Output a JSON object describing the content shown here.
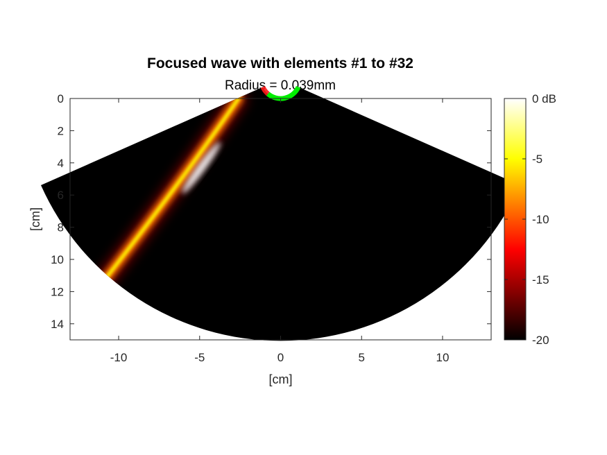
{
  "chart_data": {
    "type": "heatmap",
    "title": "Focused wave with elements #1 to #32",
    "subtitle": "Radius = 0.039mm",
    "xlabel": "[cm]",
    "ylabel": "[cm]",
    "xlim": [
      -13,
      13
    ],
    "ylim": [
      0,
      15
    ],
    "y_direction": "reversed",
    "xticks": [
      -10,
      -5,
      0,
      5,
      10
    ],
    "yticks": [
      0,
      2,
      4,
      6,
      8,
      10,
      12,
      14
    ],
    "colorbar": {
      "colormap": "hot",
      "range_db": [
        -20,
        0
      ],
      "ticks": [
        0,
        -5,
        -10,
        -15,
        -20
      ],
      "tick_labels": [
        "0 dB",
        "-5",
        "-10",
        "-15",
        "-20"
      ]
    },
    "sector": {
      "apex_cm": [
        0,
        -1.2
      ],
      "inner_radius_cm": 1.2,
      "outer_radius_cm": 16.2,
      "half_angle_deg": 66,
      "background_db": -20
    },
    "array": {
      "active_color": "#ff1a1a",
      "inactive_color": "#00ee00",
      "active_elements": "#1 to #32"
    },
    "beam": {
      "origin_cm": [
        -2.6,
        0.0
      ],
      "through_cm": [
        -6.0,
        5.0
      ],
      "focus_cm": [
        -4.9,
        4.3
      ],
      "end_cm": [
        -11.2,
        11.7
      ],
      "peak_db": 0
    },
    "colors": {
      "background": "#000000",
      "axes_text": "#262626"
    }
  }
}
